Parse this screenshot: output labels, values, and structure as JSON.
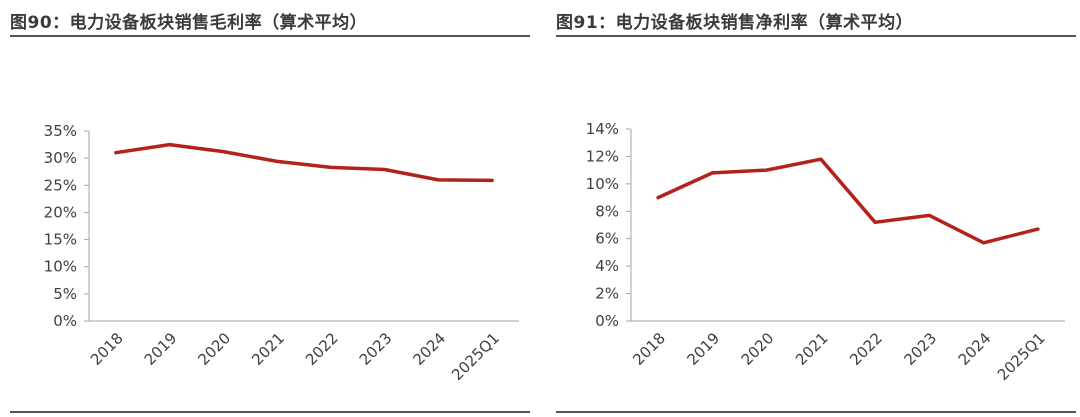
{
  "charts": [
    {
      "title": "图90：电力设备板块销售毛利率（算术平均）"
    },
    {
      "title": "图91：电力设备板块销售净利率（算术平均）"
    }
  ],
  "chart_data": [
    {
      "type": "line",
      "title": "图90：电力设备板块销售毛利率（算术平均）",
      "categories": [
        "2018",
        "2019",
        "2020",
        "2021",
        "2022",
        "2023",
        "2024",
        "2025Q1"
      ],
      "series": [
        {
          "values": [
            31.0,
            32.5,
            31.2,
            29.4,
            28.3,
            27.9,
            26.0,
            25.9
          ]
        }
      ],
      "yticks": [
        "0%",
        "5%",
        "10%",
        "15%",
        "20%",
        "25%",
        "30%",
        "35%"
      ],
      "ylim": [
        0,
        35
      ],
      "ystep": 5,
      "unit": "%",
      "grid": false,
      "line_color": "#b3221c"
    },
    {
      "type": "line",
      "title": "图91：电力设备板块销售净利率（算术平均）",
      "categories": [
        "2018",
        "2019",
        "2020",
        "2021",
        "2022",
        "2023",
        "2024",
        "2025Q1"
      ],
      "series": [
        {
          "values": [
            9.0,
            10.8,
            11.0,
            11.8,
            7.2,
            7.7,
            5.7,
            6.7
          ]
        }
      ],
      "yticks": [
        "0%",
        "2%",
        "4%",
        "6%",
        "8%",
        "10%",
        "12%",
        "14%"
      ],
      "ylim": [
        0,
        14
      ],
      "ystep": 2,
      "unit": "%",
      "grid": false,
      "line_color": "#b3221c"
    }
  ]
}
